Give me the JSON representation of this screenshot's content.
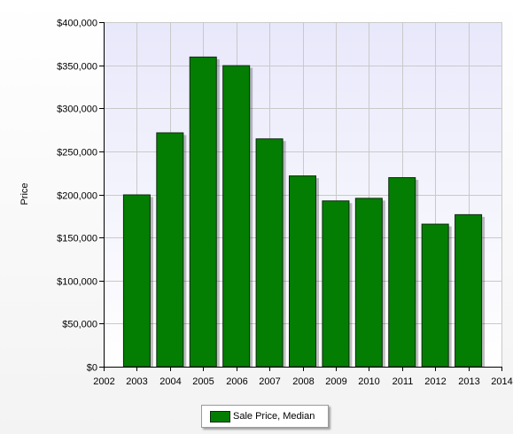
{
  "chart_data": {
    "type": "bar",
    "title": "",
    "xlabel": "",
    "ylabel": "Price",
    "categories": [
      "2003",
      "2004",
      "2005",
      "2006",
      "2007",
      "2008",
      "2009",
      "2010",
      "2011",
      "2012",
      "2013"
    ],
    "series": [
      {
        "name": "Sale Price, Median",
        "values": [
          200000,
          272000,
          360000,
          350000,
          265000,
          222000,
          193000,
          196000,
          220000,
          166000,
          177000
        ]
      }
    ],
    "x_ticks": [
      "2002",
      "2003",
      "2004",
      "2005",
      "2006",
      "2007",
      "2008",
      "2009",
      "2010",
      "2011",
      "2012",
      "2013",
      "2014"
    ],
    "y_ticks": [
      "$0",
      "$50,000",
      "$100,000",
      "$150,000",
      "$200,000",
      "$250,000",
      "$300,000",
      "$350,000",
      "$400,000"
    ],
    "ylim": [
      0,
      400000
    ],
    "xlim": [
      2002,
      2014
    ],
    "grid": true,
    "legend_position": "bottom-center",
    "colors": {
      "bar": "#037e03",
      "bar_edge": "#0b2a0b",
      "plot_background_top": "#e8e8fb",
      "plot_background_bottom": "#ffffff",
      "gridline": "#c9c9c9"
    }
  }
}
